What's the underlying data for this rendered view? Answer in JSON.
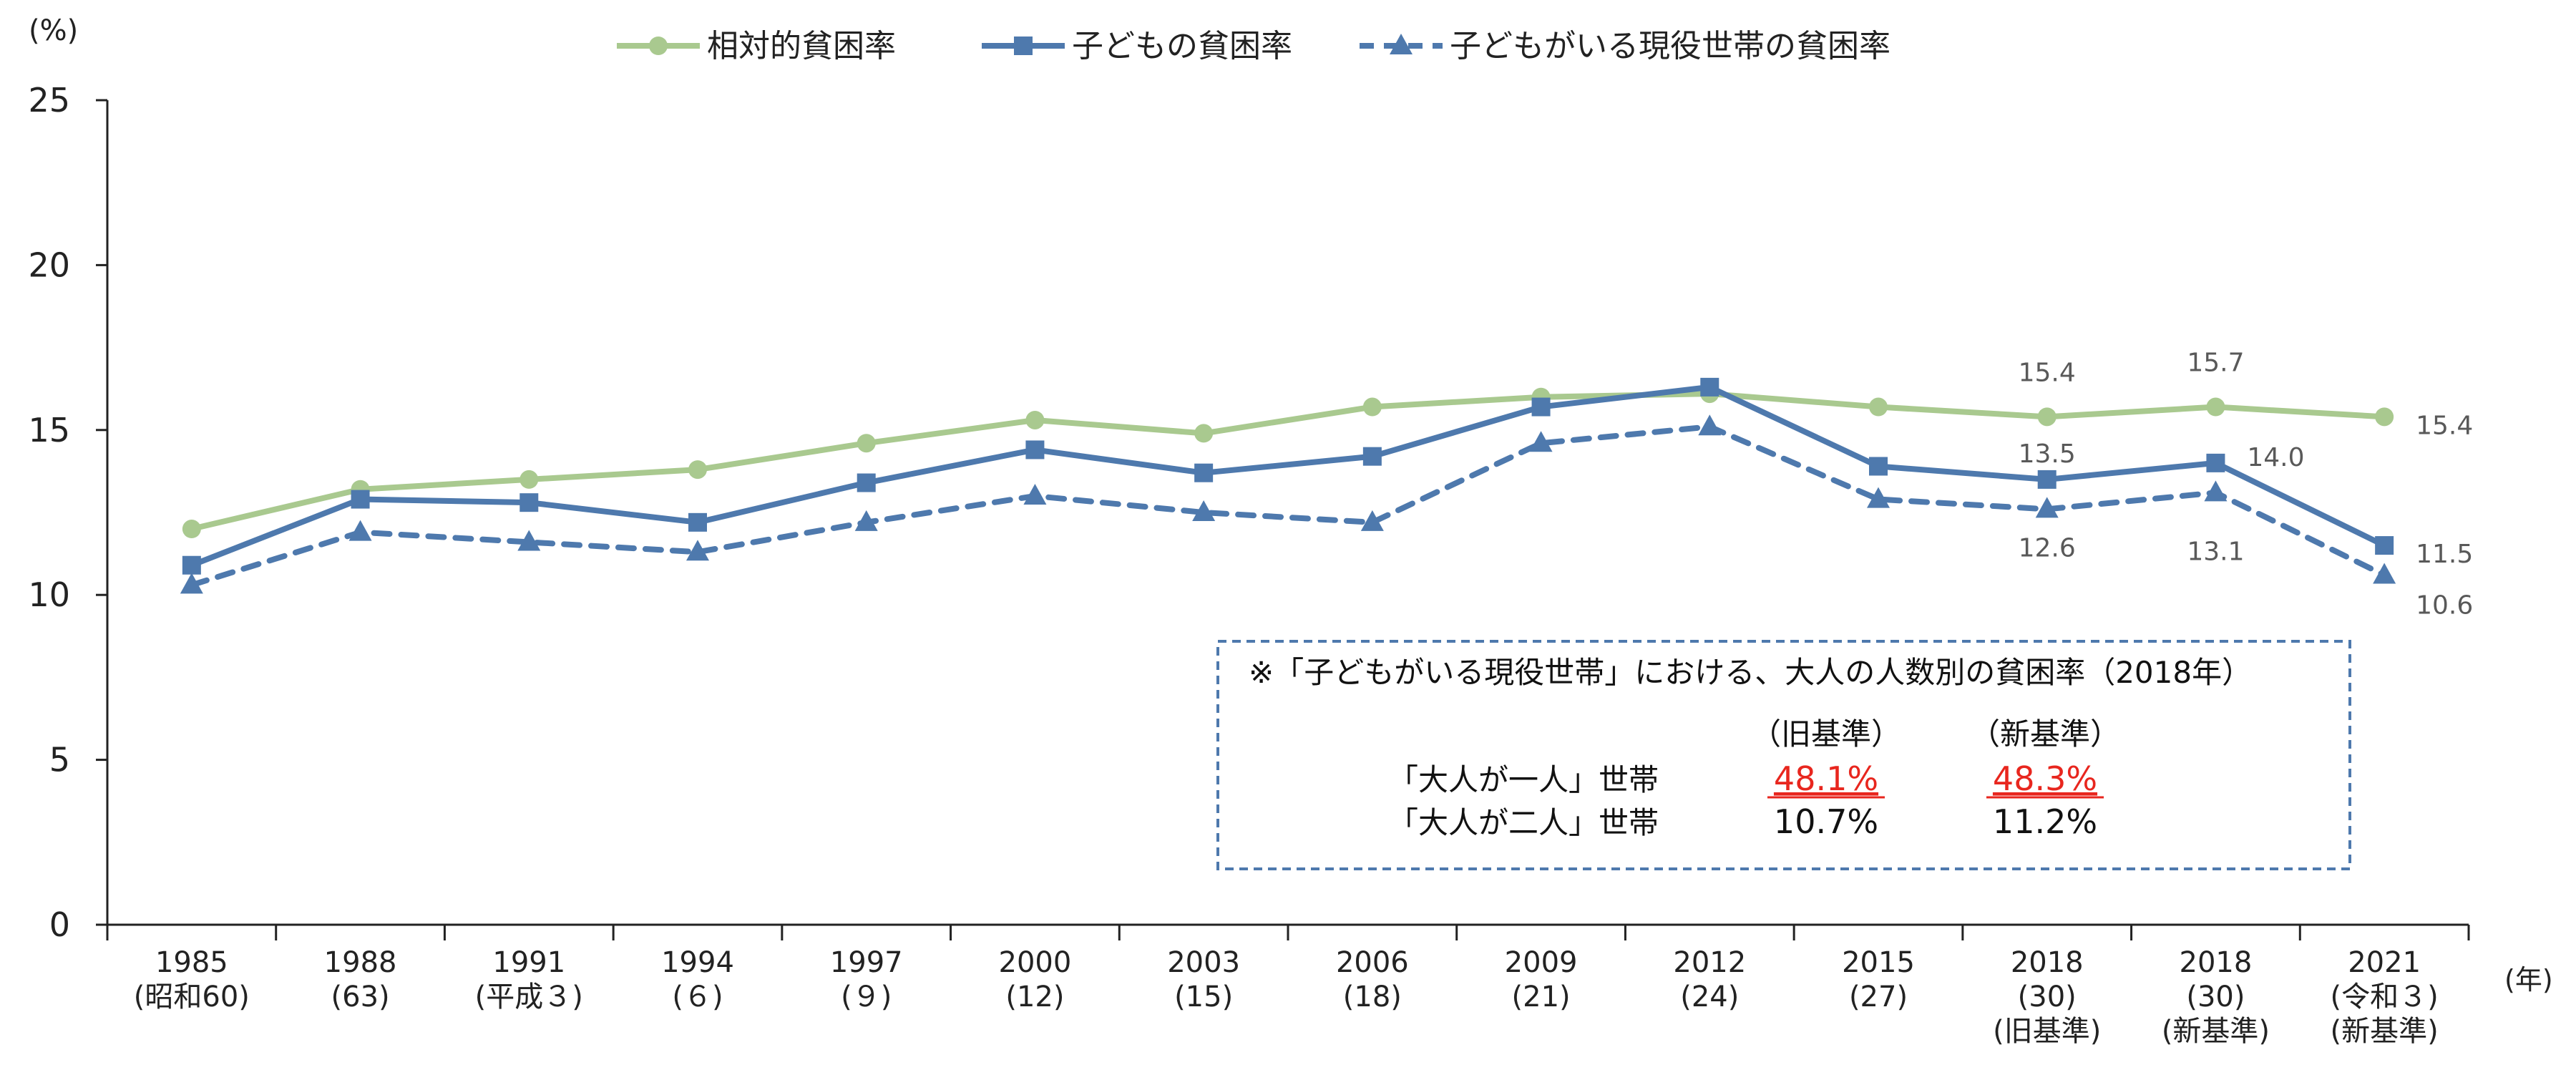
{
  "chart_data": {
    "type": "line",
    "ylabel": "(%)",
    "xlabel": "(年)",
    "ylim": [
      0,
      25
    ],
    "yticks": [
      0,
      5,
      10,
      15,
      20,
      25
    ],
    "categories": [
      {
        "year": "1985",
        "era": "(昭和60)",
        "note": ""
      },
      {
        "year": "1988",
        "era": "(63)",
        "note": ""
      },
      {
        "year": "1991",
        "era": "(平成３)",
        "note": ""
      },
      {
        "year": "1994",
        "era": "(６)",
        "note": ""
      },
      {
        "year": "1997",
        "era": "(９)",
        "note": ""
      },
      {
        "year": "2000",
        "era": "(12)",
        "note": ""
      },
      {
        "year": "2003",
        "era": "(15)",
        "note": ""
      },
      {
        "year": "2006",
        "era": "(18)",
        "note": ""
      },
      {
        "year": "2009",
        "era": "(21)",
        "note": ""
      },
      {
        "year": "2012",
        "era": "(24)",
        "note": ""
      },
      {
        "year": "2015",
        "era": "(27)",
        "note": ""
      },
      {
        "year": "2018",
        "era": "(30)",
        "note": "(旧基準)"
      },
      {
        "year": "2018",
        "era": "(30)",
        "note": "(新基準)"
      },
      {
        "year": "2021",
        "era": "(令和３)",
        "note": "(新基準)"
      }
    ],
    "grid": false,
    "legend_position": "top-center",
    "series": [
      {
        "name": "相対的貧困率",
        "color": "#a9c98f",
        "marker": "circle",
        "dash": "solid",
        "values": [
          12.0,
          13.2,
          13.5,
          13.8,
          14.6,
          15.3,
          14.9,
          15.7,
          16.0,
          16.1,
          15.7,
          15.4,
          15.7,
          15.4
        ],
        "labels": {
          "11": "15.4",
          "12": "15.7",
          "13": "15.4"
        }
      },
      {
        "name": "子どもの貧困率",
        "color": "#4e79ad",
        "marker": "square",
        "dash": "solid",
        "values": [
          10.9,
          12.9,
          12.8,
          12.2,
          13.4,
          14.4,
          13.7,
          14.2,
          15.7,
          16.3,
          13.9,
          13.5,
          14.0,
          11.5
        ],
        "labels": {
          "11": "13.5",
          "12": "14.0",
          "13": "11.5"
        }
      },
      {
        "name": "子どもがいる現役世帯の貧困率",
        "color": "#4e79ad",
        "marker": "triangle",
        "dash": "dashed",
        "values": [
          10.3,
          11.9,
          11.6,
          11.3,
          12.2,
          13.0,
          12.5,
          12.2,
          14.6,
          15.1,
          12.9,
          12.6,
          13.1,
          10.6
        ],
        "labels": {
          "11": "12.6",
          "12": "13.1",
          "13": "10.6"
        }
      }
    ]
  },
  "note_box": {
    "title": "※「子どもがいる現役世帯」における、大人の人数別の貧困率（2018年）",
    "col_old": "（旧基準）",
    "col_new": "（新基準）",
    "row1_label": "「大人が一人」世帯",
    "row1_old": "48.1%",
    "row1_new": "48.3%",
    "row2_label": "「大人が二人」世帯",
    "row2_old": "10.7%",
    "row2_new": "11.2%",
    "highlight_color": "#e8261e",
    "border_color": "#4e79ad"
  }
}
